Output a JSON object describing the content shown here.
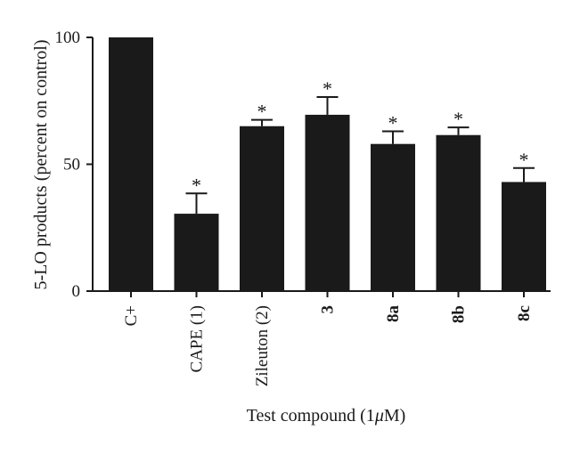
{
  "chart_data": {
    "type": "bar",
    "title": "",
    "xlabel": "Test compound (1",
    "xlabel_mu": "μ",
    "xlabel_tail": "M)",
    "ylabel": "5-LO products (percent on control)",
    "ylim": [
      0,
      100
    ],
    "yticks": [
      0,
      50,
      100
    ],
    "categories": [
      "C+",
      "CAPE (1)",
      "Zileuton (2)",
      "3",
      "8a",
      "8b",
      "8c"
    ],
    "bold_categories": [
      false,
      false,
      false,
      true,
      true,
      true,
      true
    ],
    "values": [
      100,
      30.5,
      65,
      69.5,
      58,
      61.5,
      43
    ],
    "errors": [
      0,
      8,
      2.5,
      7,
      5,
      3,
      5.5
    ],
    "significance": [
      "",
      "*",
      "*",
      "*",
      "*",
      "*",
      "*"
    ],
    "grid": false,
    "bar_color": "#1a1a1a"
  }
}
